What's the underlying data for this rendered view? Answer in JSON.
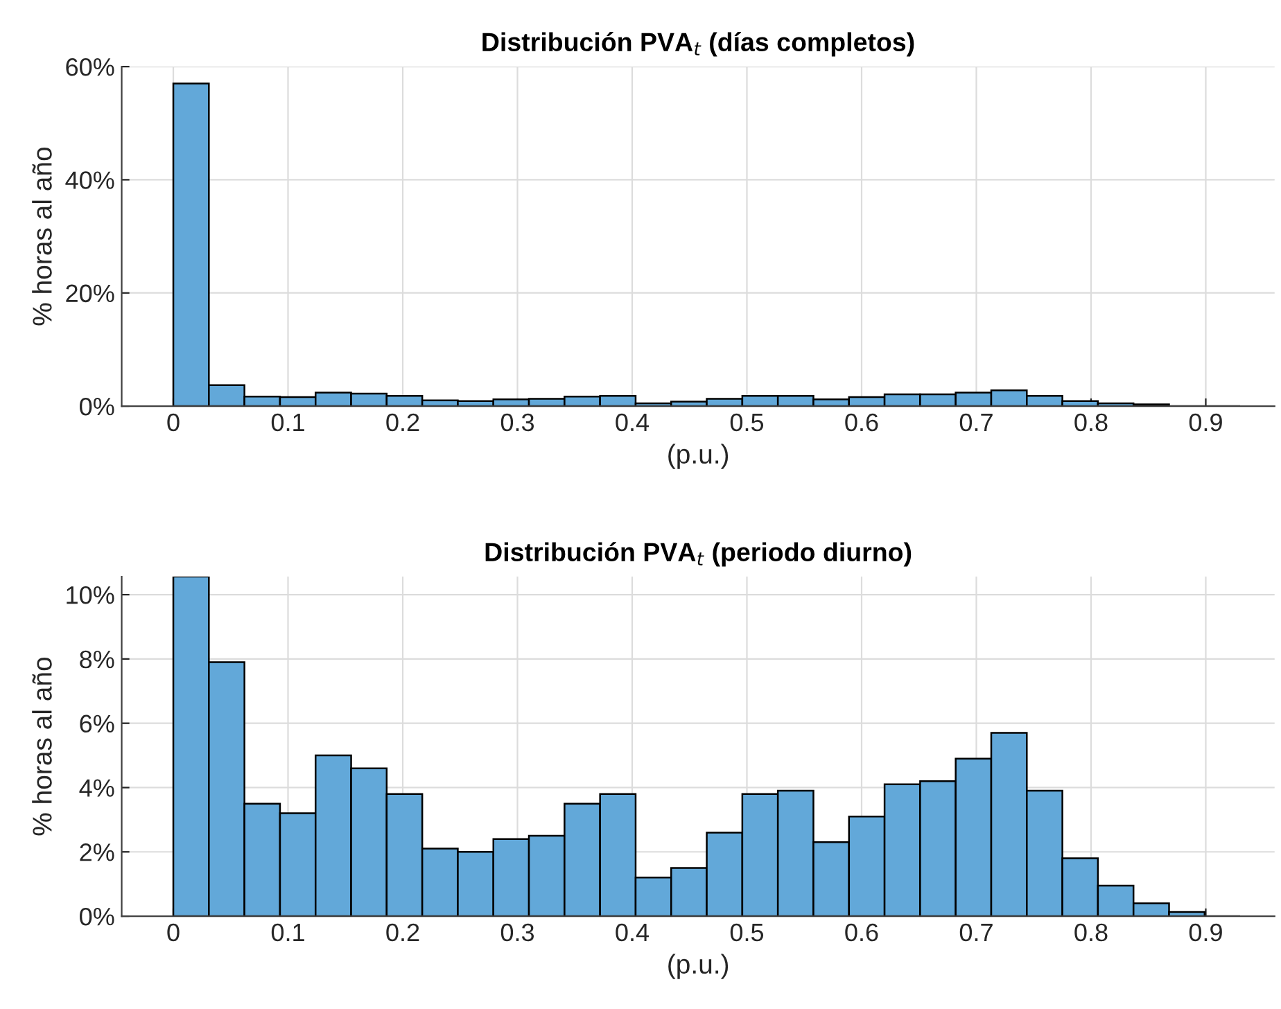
{
  "chart_data": [
    {
      "type": "histogram",
      "title": "Distribución PVA$_{t}$ (días completos)",
      "xlabel": "(p.u.)",
      "ylabel": "% horas al año",
      "color": "#62a8d9",
      "bins": [
        0,
        0.031,
        0.062,
        0.093,
        0.124,
        0.155,
        0.186,
        0.217,
        0.248,
        0.279,
        0.31,
        0.341,
        0.372,
        0.403,
        0.434,
        0.465,
        0.496,
        0.527,
        0.558,
        0.589,
        0.62,
        0.651,
        0.682,
        0.713,
        0.744,
        0.775,
        0.806,
        0.837,
        0.868,
        0.899,
        0.93
      ],
      "values": [
        57.0,
        3.7,
        1.7,
        1.6,
        2.4,
        2.2,
        1.8,
        1.0,
        0.9,
        1.2,
        1.3,
        1.7,
        1.8,
        0.5,
        0.8,
        1.3,
        1.8,
        1.8,
        1.2,
        1.6,
        2.1,
        2.1,
        2.4,
        2.8,
        1.8,
        0.9,
        0.5,
        0.3,
        null,
        null
      ],
      "xlim": [
        -0.045,
        0.96
      ],
      "ylim": [
        0,
        60
      ],
      "xticks": [
        0,
        0.1,
        0.2,
        0.3,
        0.4,
        0.5,
        0.6,
        0.7,
        0.8,
        0.9
      ],
      "yticks": [
        {
          "value": 0,
          "label": "0%"
        },
        {
          "value": 20,
          "label": "20%"
        },
        {
          "value": 40,
          "label": "40%"
        },
        {
          "value": 60,
          "label": "60%"
        }
      ],
      "grid": true
    },
    {
      "type": "histogram",
      "title": "Distribución PVA$_{t}$ (periodo diurno)",
      "xlabel": "(p.u.)",
      "ylabel": "% horas al año",
      "color": "#62a8d9",
      "bins": [
        0,
        0.031,
        0.062,
        0.093,
        0.124,
        0.155,
        0.186,
        0.217,
        0.248,
        0.279,
        0.31,
        0.341,
        0.372,
        0.403,
        0.434,
        0.465,
        0.496,
        0.527,
        0.558,
        0.589,
        0.62,
        0.651,
        0.682,
        0.713,
        0.744,
        0.775,
        0.806,
        0.837,
        0.868,
        0.899,
        0.93
      ],
      "values": [
        10.56,
        7.9,
        3.5,
        3.2,
        5.0,
        4.6,
        3.8,
        2.1,
        2.0,
        2.4,
        2.5,
        3.5,
        3.8,
        1.2,
        1.5,
        2.6,
        3.8,
        3.9,
        2.3,
        3.1,
        4.1,
        4.2,
        4.9,
        5.7,
        3.9,
        1.8,
        0.95,
        0.4,
        0.13,
        null
      ],
      "xlim": [
        -0.045,
        0.96
      ],
      "ylim": [
        0,
        10.56
      ],
      "xticks": [
        0,
        0.1,
        0.2,
        0.3,
        0.4,
        0.5,
        0.6,
        0.7,
        0.8,
        0.9
      ],
      "yticks": [
        {
          "value": 0,
          "label": "0%"
        },
        {
          "value": 2,
          "label": "2%"
        },
        {
          "value": 4,
          "label": "4%"
        },
        {
          "value": 6,
          "label": "6%"
        },
        {
          "value": 8,
          "label": "8%"
        },
        {
          "value": 10,
          "label": "10%"
        }
      ],
      "grid": true
    }
  ]
}
